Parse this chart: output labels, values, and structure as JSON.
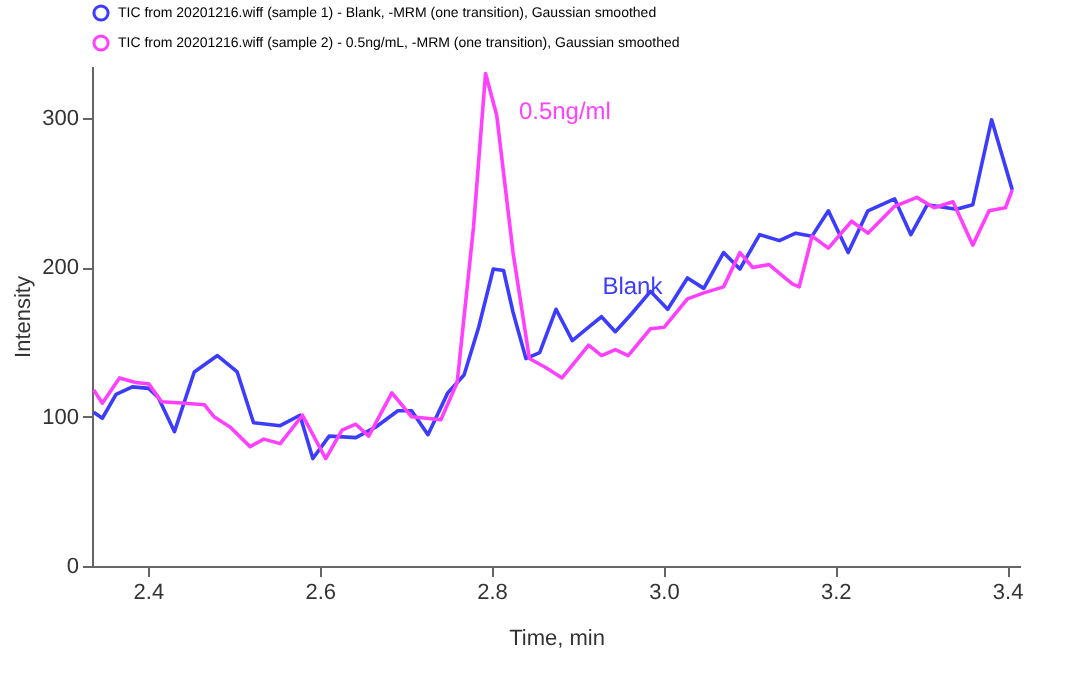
{
  "chart_data": {
    "type": "line",
    "xlabel": "Time, min",
    "ylabel": "Intensity",
    "xlim": [
      2.335,
      3.415
    ],
    "xticks": [
      2.4,
      2.6,
      2.8,
      {
        "value": 3.0,
        "label": "3.0"
      },
      3.2,
      3.4
    ],
    "ylim": [
      0,
      335
    ],
    "yticks": [
      0,
      100,
      200,
      300
    ],
    "grid": false,
    "legend": "top left",
    "marker": "none",
    "line_style": "solid",
    "annotations": [
      "Blank",
      "0.5ng/ml"
    ],
    "series": [
      {
        "name": "TIC from 20201216.wiff (sample 1) - Blank, -MRM (one transition), Gaussian smoothed",
        "color": "#3c3cff",
        "x": [
          2.337,
          2.347,
          2.363,
          2.382,
          2.401,
          2.412,
          2.431,
          2.454,
          2.481,
          2.504,
          2.523,
          2.554,
          2.577,
          2.592,
          2.611,
          2.642,
          2.665,
          2.691,
          2.707,
          2.726,
          2.749,
          2.768,
          2.785,
          2.802,
          2.814,
          2.825,
          2.84,
          2.856,
          2.875,
          2.894,
          2.913,
          2.928,
          2.944,
          2.963,
          2.985,
          3.005,
          3.028,
          3.047,
          3.07,
          3.089,
          3.112,
          3.135,
          3.154,
          3.173,
          3.192,
          3.215,
          3.238,
          3.269,
          3.288,
          3.307,
          3.341,
          3.36,
          3.382,
          3.406
        ],
        "values": [
          103,
          99,
          115,
          120,
          119,
          113,
          90,
          130,
          141,
          130,
          96,
          94,
          101,
          72,
          87,
          86,
          93,
          104,
          104,
          88,
          116,
          128,
          160,
          199,
          198,
          170,
          139,
          143,
          172,
          151,
          160,
          167,
          157,
          169,
          184,
          172,
          193,
          186,
          210,
          199,
          222,
          218,
          223,
          221,
          238,
          210,
          238,
          246,
          222,
          242,
          239,
          242,
          299,
          252
        ]
      },
      {
        "name": "TIC from 20201216.wiff (sample 2) - 0.5ng/mL, -MRM (one transition), Gaussian smoothed",
        "color": "#ff40ff",
        "x": [
          2.337,
          2.347,
          2.367,
          2.386,
          2.401,
          2.416,
          2.443,
          2.466,
          2.477,
          2.496,
          2.519,
          2.535,
          2.554,
          2.58,
          2.607,
          2.626,
          2.642,
          2.657,
          2.684,
          2.707,
          2.741,
          2.76,
          2.779,
          2.793,
          2.806,
          2.825,
          2.844,
          2.863,
          2.882,
          2.913,
          2.928,
          2.944,
          2.959,
          2.985,
          3.001,
          3.028,
          3.047,
          3.07,
          3.089,
          3.104,
          3.123,
          3.15,
          3.158,
          3.173,
          3.192,
          3.219,
          3.238,
          3.269,
          3.295,
          3.315,
          3.337,
          3.36,
          3.379,
          3.398,
          3.406
        ],
        "values": [
          118,
          109,
          126,
          123,
          122,
          110,
          109,
          108,
          100,
          93,
          80,
          85,
          82,
          101,
          72,
          91,
          95,
          87,
          116,
          100,
          98,
          123,
          227,
          330,
          302,
          210,
          139,
          133,
          126,
          148,
          141,
          145,
          141,
          159,
          160,
          179,
          183,
          187,
          210,
          200,
          202,
          189,
          187,
          221,
          213,
          231,
          223,
          241,
          247,
          240,
          244,
          215,
          238,
          240,
          252
        ]
      }
    ]
  }
}
